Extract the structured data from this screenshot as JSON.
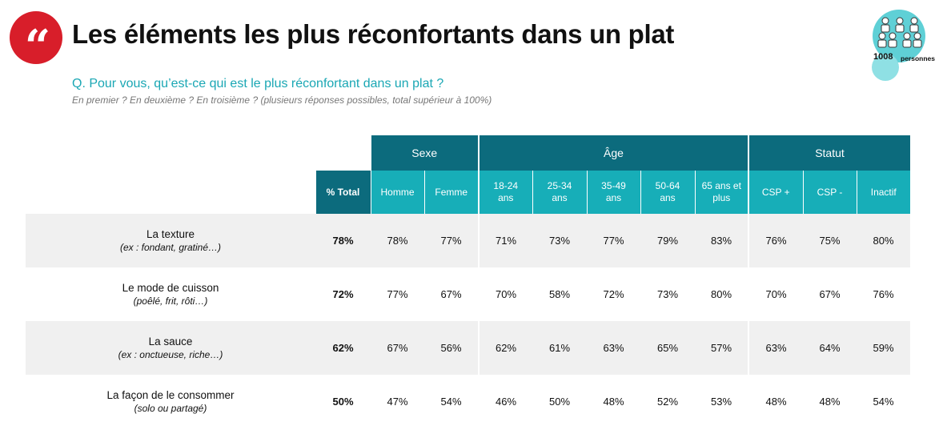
{
  "header": {
    "quote_mark": "“",
    "title": "Les éléments les plus réconfortants dans un plat",
    "question": "Q. Pour vous, qu’est-ce qui est le plus réconfortant dans un plat ?",
    "subquestion": "En premier ? En deuxième ? En troisième ? (plusieurs réponses possibles, total supérieur à 100%)",
    "sample_count": "1008",
    "sample_label": "personnes",
    "accent_color": "#d81e2a",
    "teal_dark": "#0c6b7d",
    "teal_light": "#17aeb8"
  },
  "table": {
    "groups": [
      "Sexe",
      "Âge",
      "Statut"
    ],
    "columns": [
      "% Total",
      "Homme",
      "Femme",
      "18-24 ans",
      "25-34 ans",
      "35-49 ans",
      "50-64 ans",
      "65 ans et plus",
      "CSP +",
      "CSP -",
      "Inactif"
    ],
    "rows": [
      {
        "label": "La texture",
        "example": "(ex : fondant, gratiné…)",
        "values": [
          "78%",
          "78%",
          "77%",
          "71%",
          "73%",
          "77%",
          "79%",
          "83%",
          "76%",
          "75%",
          "80%"
        ]
      },
      {
        "label": "Le mode de cuisson",
        "example": "(poêlé, frit, rôti…)",
        "values": [
          "72%",
          "77%",
          "67%",
          "70%",
          "58%",
          "72%",
          "73%",
          "80%",
          "70%",
          "67%",
          "76%"
        ]
      },
      {
        "label": "La sauce",
        "example": "(ex : onctueuse, riche…)",
        "values": [
          "62%",
          "67%",
          "56%",
          "62%",
          "61%",
          "63%",
          "65%",
          "57%",
          "63%",
          "64%",
          "59%"
        ]
      },
      {
        "label": "La façon de le consommer",
        "example": "(solo ou partagé)",
        "values": [
          "50%",
          "47%",
          "54%",
          "46%",
          "50%",
          "48%",
          "52%",
          "53%",
          "48%",
          "48%",
          "54%"
        ]
      }
    ]
  }
}
